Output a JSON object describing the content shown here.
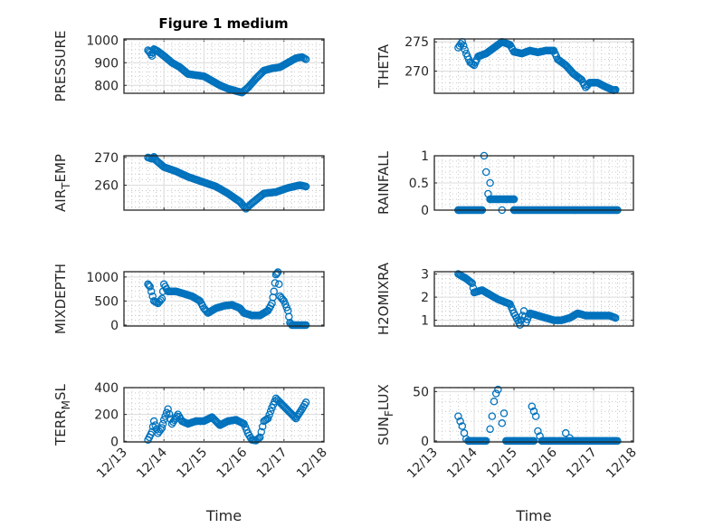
{
  "figure": {
    "title": "Figure 1 medium",
    "xlabel": "Time"
  },
  "colors": {
    "marker": "#0072BD",
    "axis": "#262626",
    "grid": "#dcdcdc"
  },
  "chart_data": [
    {
      "type": "scatter",
      "ylabel": "PRESSURE",
      "xlim_days": [
        0,
        5
      ],
      "ylim": [
        765,
        1005
      ],
      "yticks": [
        800,
        900,
        1000
      ],
      "x_reference": "12/13",
      "points": [
        [
          0.6,
          955
        ],
        [
          0.65,
          945
        ],
        [
          0.7,
          930
        ],
        [
          0.75,
          960
        ],
        [
          0.8,
          955
        ],
        [
          0.85,
          950
        ],
        [
          1.0,
          930
        ],
        [
          1.2,
          900
        ],
        [
          1.4,
          880
        ],
        [
          1.6,
          850
        ],
        [
          1.8,
          845
        ],
        [
          2.0,
          840
        ],
        [
          2.2,
          820
        ],
        [
          2.4,
          800
        ],
        [
          2.6,
          785
        ],
        [
          2.8,
          775
        ],
        [
          2.95,
          768
        ],
        [
          3.1,
          790
        ],
        [
          3.3,
          830
        ],
        [
          3.5,
          865
        ],
        [
          3.7,
          875
        ],
        [
          3.9,
          880
        ],
        [
          4.1,
          900
        ],
        [
          4.3,
          920
        ],
        [
          4.45,
          925
        ],
        [
          4.55,
          915
        ]
      ]
    },
    {
      "type": "scatter",
      "ylabel": "THETA",
      "xlim_days": [
        0,
        5
      ],
      "ylim": [
        266.2,
        275.5
      ],
      "yticks": [
        270,
        275
      ],
      "x_reference": "12/13",
      "points": [
        [
          0.6,
          274
        ],
        [
          0.7,
          275
        ],
        [
          0.8,
          273
        ],
        [
          0.9,
          271.5
        ],
        [
          1.0,
          271
        ],
        [
          1.1,
          272.5
        ],
        [
          1.3,
          273
        ],
        [
          1.5,
          274
        ],
        [
          1.7,
          275
        ],
        [
          1.9,
          274.5
        ],
        [
          2.0,
          273.3
        ],
        [
          2.2,
          273
        ],
        [
          2.4,
          273.5
        ],
        [
          2.6,
          273.2
        ],
        [
          2.8,
          273.5
        ],
        [
          3.0,
          273.5
        ],
        [
          3.1,
          272
        ],
        [
          3.3,
          271
        ],
        [
          3.5,
          269.5
        ],
        [
          3.7,
          268.5
        ],
        [
          3.8,
          267.2
        ],
        [
          3.9,
          268
        ],
        [
          4.1,
          268
        ],
        [
          4.3,
          267.3
        ],
        [
          4.5,
          266.7
        ],
        [
          4.55,
          266.8
        ]
      ]
    },
    {
      "type": "scatter",
      "ylabel": "AIR_TEMP",
      "xlim_days": [
        0,
        5
      ],
      "ylim": [
        251,
        270.6
      ],
      "yticks": [
        260,
        270
      ],
      "x_reference": "12/13",
      "points": [
        [
          0.6,
          270
        ],
        [
          0.7,
          269.5
        ],
        [
          0.75,
          270.2
        ],
        [
          0.8,
          269
        ],
        [
          1.0,
          266.5
        ],
        [
          1.3,
          265
        ],
        [
          1.6,
          263
        ],
        [
          2.0,
          261
        ],
        [
          2.3,
          259.5
        ],
        [
          2.6,
          257
        ],
        [
          2.9,
          254
        ],
        [
          3.05,
          251.5
        ],
        [
          3.2,
          253.5
        ],
        [
          3.5,
          257
        ],
        [
          3.8,
          257.5
        ],
        [
          4.1,
          259
        ],
        [
          4.4,
          260
        ],
        [
          4.55,
          259.5
        ]
      ]
    },
    {
      "type": "scatter",
      "ylabel": "RAINFALL",
      "xlim_days": [
        0,
        5
      ],
      "ylim": [
        0,
        1
      ],
      "yticks": [
        0,
        0.5,
        1
      ],
      "x_reference": "12/13",
      "points": [
        [
          0.6,
          0
        ],
        [
          1.2,
          0
        ],
        [
          1.25,
          1.0
        ],
        [
          1.3,
          0.7
        ],
        [
          1.4,
          0.5
        ],
        [
          1.35,
          0.3
        ],
        [
          1.4,
          0.2
        ],
        [
          2.0,
          0.2
        ],
        [
          1.7,
          0
        ],
        [
          2.0,
          0
        ],
        [
          4.6,
          0
        ]
      ],
      "runs": [
        [
          0.6,
          1.2,
          0
        ],
        [
          1.4,
          2.0,
          0.2
        ],
        [
          2.0,
          4.6,
          0
        ]
      ]
    },
    {
      "type": "scatter",
      "ylabel": "MIXDEPTH",
      "xlim_days": [
        0,
        5
      ],
      "ylim": [
        -20,
        1110
      ],
      "yticks": [
        0,
        500,
        1000
      ],
      "x_reference": "12/13",
      "points": [
        [
          0.6,
          850
        ],
        [
          0.65,
          800
        ],
        [
          0.75,
          500
        ],
        [
          0.85,
          450
        ],
        [
          0.95,
          550
        ],
        [
          1.0,
          850
        ],
        [
          1.1,
          700
        ],
        [
          1.3,
          700
        ],
        [
          1.5,
          650
        ],
        [
          1.7,
          600
        ],
        [
          1.9,
          500
        ],
        [
          2.0,
          350
        ],
        [
          2.1,
          250
        ],
        [
          2.3,
          350
        ],
        [
          2.5,
          400
        ],
        [
          2.7,
          420
        ],
        [
          2.9,
          350
        ],
        [
          3.0,
          250
        ],
        [
          3.2,
          200
        ],
        [
          3.4,
          200
        ],
        [
          3.6,
          300
        ],
        [
          3.7,
          450
        ],
        [
          3.75,
          700
        ],
        [
          3.8,
          1050
        ],
        [
          3.85,
          1100
        ],
        [
          3.9,
          600
        ],
        [
          4.0,
          500
        ],
        [
          4.1,
          300
        ],
        [
          4.15,
          50
        ],
        [
          4.2,
          0
        ],
        [
          4.55,
          0
        ]
      ]
    },
    {
      "type": "scatter",
      "ylabel": "H2OMIXRA",
      "xlim_days": [
        0,
        5
      ],
      "ylim": [
        0.75,
        3.1
      ],
      "yticks": [
        1,
        2,
        3
      ],
      "x_reference": "12/13",
      "points": [
        [
          0.6,
          3.0
        ],
        [
          0.8,
          2.8
        ],
        [
          0.95,
          2.6
        ],
        [
          1.0,
          2.2
        ],
        [
          1.2,
          2.3
        ],
        [
          1.4,
          2.1
        ],
        [
          1.6,
          1.9
        ],
        [
          1.9,
          1.7
        ],
        [
          2.0,
          1.3
        ],
        [
          2.1,
          1.0
        ],
        [
          2.15,
          0.8
        ],
        [
          2.25,
          1.4
        ],
        [
          2.3,
          0.9
        ],
        [
          2.4,
          1.3
        ],
        [
          2.6,
          1.2
        ],
        [
          2.8,
          1.1
        ],
        [
          3.0,
          1.0
        ],
        [
          3.2,
          1.0
        ],
        [
          3.4,
          1.1
        ],
        [
          3.6,
          1.3
        ],
        [
          3.8,
          1.2
        ],
        [
          4.0,
          1.2
        ],
        [
          4.2,
          1.2
        ],
        [
          4.4,
          1.2
        ],
        [
          4.55,
          1.1
        ]
      ]
    },
    {
      "type": "scatter",
      "ylabel": "TERR_MSL",
      "xlim_days": [
        0,
        5
      ],
      "ylim": [
        -5,
        400
      ],
      "yticks": [
        0,
        200,
        400
      ],
      "x_reference": "12/13",
      "points": [
        [
          0.6,
          10
        ],
        [
          0.7,
          70
        ],
        [
          0.75,
          150
        ],
        [
          0.85,
          60
        ],
        [
          0.95,
          100
        ],
        [
          1.0,
          160
        ],
        [
          1.1,
          240
        ],
        [
          1.2,
          130
        ],
        [
          1.35,
          200
        ],
        [
          1.45,
          150
        ],
        [
          1.6,
          130
        ],
        [
          1.8,
          150
        ],
        [
          2.0,
          150
        ],
        [
          2.2,
          180
        ],
        [
          2.4,
          120
        ],
        [
          2.6,
          150
        ],
        [
          2.8,
          160
        ],
        [
          3.0,
          130
        ],
        [
          3.1,
          60
        ],
        [
          3.2,
          10
        ],
        [
          3.3,
          5
        ],
        [
          3.4,
          30
        ],
        [
          3.5,
          150
        ],
        [
          3.6,
          170
        ],
        [
          3.7,
          250
        ],
        [
          3.8,
          320
        ],
        [
          3.9,
          290
        ],
        [
          4.1,
          230
        ],
        [
          4.3,
          170
        ],
        [
          4.45,
          240
        ],
        [
          4.55,
          290
        ]
      ]
    },
    {
      "type": "scatter",
      "ylabel": "SUN_FLUX",
      "xlim_days": [
        0,
        5
      ],
      "ylim": [
        -1,
        54
      ],
      "yticks": [
        0,
        50
      ],
      "x_reference": "12/13",
      "points": [
        [
          0.6,
          25
        ],
        [
          0.65,
          20
        ],
        [
          0.7,
          15
        ],
        [
          0.75,
          8
        ],
        [
          0.8,
          2
        ],
        [
          1.4,
          12
        ],
        [
          1.45,
          25
        ],
        [
          1.5,
          40
        ],
        [
          1.55,
          48
        ],
        [
          1.6,
          52
        ],
        [
          1.7,
          18
        ],
        [
          1.75,
          28
        ],
        [
          2.45,
          35
        ],
        [
          2.5,
          30
        ],
        [
          2.55,
          25
        ],
        [
          2.6,
          10
        ],
        [
          2.65,
          5
        ],
        [
          3.3,
          8
        ],
        [
          3.4,
          3
        ]
      ],
      "runs": [
        [
          0.85,
          1.3,
          0
        ],
        [
          1.8,
          2.5,
          0
        ],
        [
          2.7,
          3.05,
          0
        ],
        [
          3.1,
          3.6,
          0
        ],
        [
          3.6,
          4.6,
          0
        ]
      ]
    }
  ],
  "xticks": [
    "12/13",
    "12/14",
    "12/15",
    "12/16",
    "12/17",
    "12/18"
  ]
}
